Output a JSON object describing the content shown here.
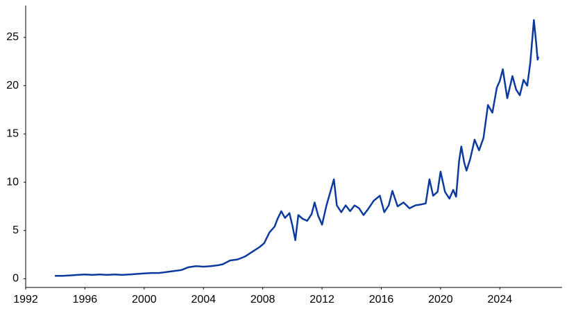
{
  "chart_data": {
    "type": "line",
    "x": [
      1993.97,
      1994.5,
      1995.0,
      1995.5,
      1996.0,
      1996.5,
      1997.0,
      1997.5,
      1998.0,
      1998.5,
      1999.0,
      1999.5,
      2000.0,
      2000.5,
      2001.0,
      2001.5,
      2002.0,
      2002.5,
      2003.0,
      2003.5,
      2004.0,
      2004.5,
      2005.0,
      2005.3,
      2005.8,
      2006.3,
      2006.8,
      2007.3,
      2007.8,
      2008.1,
      2008.45,
      2008.8,
      2009.0,
      2009.25,
      2009.5,
      2009.8,
      2010.0,
      2010.2,
      2010.4,
      2010.7,
      2011.0,
      2011.3,
      2011.5,
      2011.75,
      2012.0,
      2012.3,
      2012.6,
      2012.8,
      2013.0,
      2013.3,
      2013.6,
      2013.9,
      2014.2,
      2014.5,
      2014.8,
      2015.1,
      2015.5,
      2015.9,
      2016.2,
      2016.5,
      2016.75,
      2017.1,
      2017.5,
      2017.9,
      2018.3,
      2018.7,
      2019.0,
      2019.25,
      2019.5,
      2019.8,
      2020.0,
      2020.3,
      2020.6,
      2020.85,
      2021.05,
      2021.25,
      2021.4,
      2021.6,
      2021.75,
      2022.0,
      2022.3,
      2022.6,
      2022.9,
      2023.2,
      2023.5,
      2023.8,
      2024.0,
      2024.2,
      2024.5,
      2024.85,
      2025.1,
      2025.35,
      2025.6,
      2025.85,
      2026.05,
      2026.2,
      2026.3,
      2026.45,
      2026.55,
      2026.6
    ],
    "series": [
      {
        "color": "#0b3a9e",
        "values": [
          0.3,
          0.3,
          0.35,
          0.4,
          0.45,
          0.4,
          0.45,
          0.4,
          0.45,
          0.4,
          0.45,
          0.5,
          0.55,
          0.6,
          0.6,
          0.7,
          0.8,
          0.9,
          1.2,
          1.3,
          1.25,
          1.3,
          1.4,
          1.5,
          1.9,
          2.0,
          2.3,
          2.8,
          3.3,
          3.7,
          4.8,
          5.4,
          6.2,
          7.0,
          6.3,
          6.8,
          5.5,
          4.0,
          6.6,
          6.2,
          6.0,
          6.7,
          7.9,
          6.5,
          5.6,
          7.6,
          9.2,
          10.3,
          7.6,
          6.9,
          7.6,
          7.0,
          7.6,
          7.3,
          6.6,
          7.2,
          8.1,
          8.6,
          6.9,
          7.6,
          9.1,
          7.5,
          7.9,
          7.3,
          7.6,
          7.7,
          7.8,
          10.3,
          8.6,
          9.0,
          11.1,
          9.0,
          8.3,
          9.2,
          8.5,
          12.2,
          13.7,
          12.0,
          11.2,
          12.4,
          14.4,
          13.3,
          14.6,
          18.0,
          17.2,
          19.8,
          20.5,
          21.7,
          18.7,
          21.0,
          19.6,
          19.0,
          20.6,
          20.0,
          22.3,
          25.0,
          26.8,
          24.5,
          22.7,
          23.0
        ]
      }
    ],
    "xlim": [
      1992,
      2028.2
    ],
    "ylim": [
      -0.9,
      28.3
    ],
    "xticks": [
      1992,
      1996,
      2000,
      2004,
      2008,
      2012,
      2016,
      2020,
      2024
    ],
    "yticks": [
      0,
      5,
      10,
      15,
      20,
      25
    ]
  }
}
